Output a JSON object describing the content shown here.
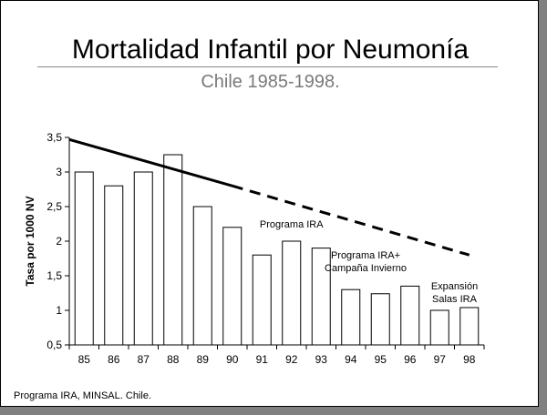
{
  "slide": {
    "title": "Mortalidad Infantil por Neumonía",
    "subtitle": "Chile 1985-1998.",
    "footer": "Programa IRA, MINSAL. Chile."
  },
  "chart_data": {
    "type": "bar",
    "ylabel": "Tasa por 1000 NV",
    "xlabel": "",
    "ylim": [
      0.5,
      3.5
    ],
    "yticks": [
      "0,5",
      "1",
      "1,5",
      "2",
      "2,5",
      "3",
      "3,5"
    ],
    "categories": [
      "85",
      "86",
      "87",
      "88",
      "89",
      "90",
      "91",
      "92",
      "93",
      "94",
      "95",
      "96",
      "97",
      "98"
    ],
    "values": [
      3.0,
      2.8,
      3.0,
      3.25,
      2.5,
      2.2,
      1.8,
      2.0,
      1.9,
      1.3,
      1.24,
      1.35,
      1.0,
      1.04
    ],
    "grid": false,
    "bar_color": "#ffffff",
    "trend_solid": {
      "from": [
        "85",
        3.47
      ],
      "to": [
        "90",
        2.8
      ]
    },
    "trend_dashed": {
      "from": [
        "90",
        2.8
      ],
      "to": [
        "98",
        1.8
      ]
    },
    "annotations": [
      {
        "lines": [
          "Programa IRA"
        ],
        "x": "92",
        "y": 2.2
      },
      {
        "lines": [
          "Programa IRA+",
          "Campaña Invierno"
        ],
        "x": "94.5",
        "y": 1.75
      },
      {
        "lines": [
          "Expansión",
          "Salas IRA"
        ],
        "x": "97.5",
        "y": 1.3
      }
    ]
  }
}
